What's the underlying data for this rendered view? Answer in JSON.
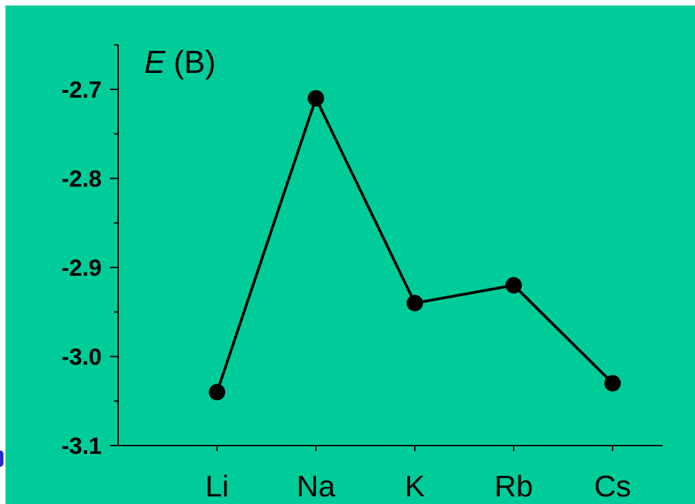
{
  "chart_data": {
    "type": "line",
    "title": "",
    "xlabel": "",
    "ylabel": "E (B)",
    "ylabel_symbol": "E",
    "ylabel_unit": "(B)",
    "categories": [
      "Li",
      "Na",
      "K",
      "Rb",
      "Cs"
    ],
    "series": [
      {
        "values": [
          -3.04,
          -2.71,
          -2.94,
          -2.92,
          -3.03
        ]
      }
    ],
    "ylim": [
      -3.1,
      -2.65
    ],
    "yticks": [
      -3.1,
      -3.0,
      -2.9,
      -2.8,
      -2.7
    ],
    "ytick_labels": [
      "-3.1",
      "-3.0",
      "-2.9",
      "-2.8",
      "-2.7"
    ],
    "grid": false,
    "colors": {
      "background": "#00CC99",
      "line": "#000000",
      "marker": "#000000"
    }
  }
}
